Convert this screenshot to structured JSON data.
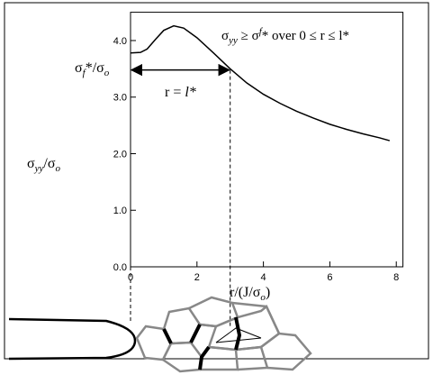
{
  "chart_data": {
    "type": "line",
    "ylabel": [
      "σ",
      "yy",
      "/σ",
      "o"
    ],
    "xlabel": [
      "r/(J/σ",
      "o",
      ")"
    ],
    "annotation": [
      "σ",
      "yy",
      " ≥ σ",
      "f",
      "* over 0 ≤ r ≤ l*"
    ],
    "threshold_label": [
      "σ",
      "f",
      "*/σ",
      "o"
    ],
    "threshold": {
      "y": 3.48,
      "x": [
        0,
        3
      ]
    },
    "arrow_label": [
      "r = ",
      "l*"
    ],
    "x": [
      0,
      0.3,
      0.5,
      0.75,
      1,
      1.3,
      1.6,
      2,
      2.5,
      3,
      3.5,
      4,
      4.5,
      5,
      5.5,
      6,
      6.5,
      7,
      7.5,
      7.8
    ],
    "series": [
      {
        "color": "#000000",
        "values": [
          3.78,
          3.79,
          3.85,
          4.02,
          4.18,
          4.26,
          4.22,
          4.05,
          3.78,
          3.5,
          3.25,
          3.05,
          2.89,
          2.75,
          2.63,
          2.52,
          2.43,
          2.35,
          2.28,
          2.23
        ]
      }
    ],
    "xlim": [
      0,
      8.2
    ],
    "ylim": [
      0,
      4.5
    ],
    "xticks": [
      0,
      2,
      4,
      6,
      8
    ],
    "yticks": [
      {
        "value": 0,
        "label": "0.0"
      },
      {
        "value": 1,
        "label": "1.0"
      },
      {
        "value": 2,
        "label": "2.0"
      },
      {
        "value": 3,
        "label": "3.0"
      },
      {
        "value": 4,
        "label": "4.0"
      }
    ]
  }
}
